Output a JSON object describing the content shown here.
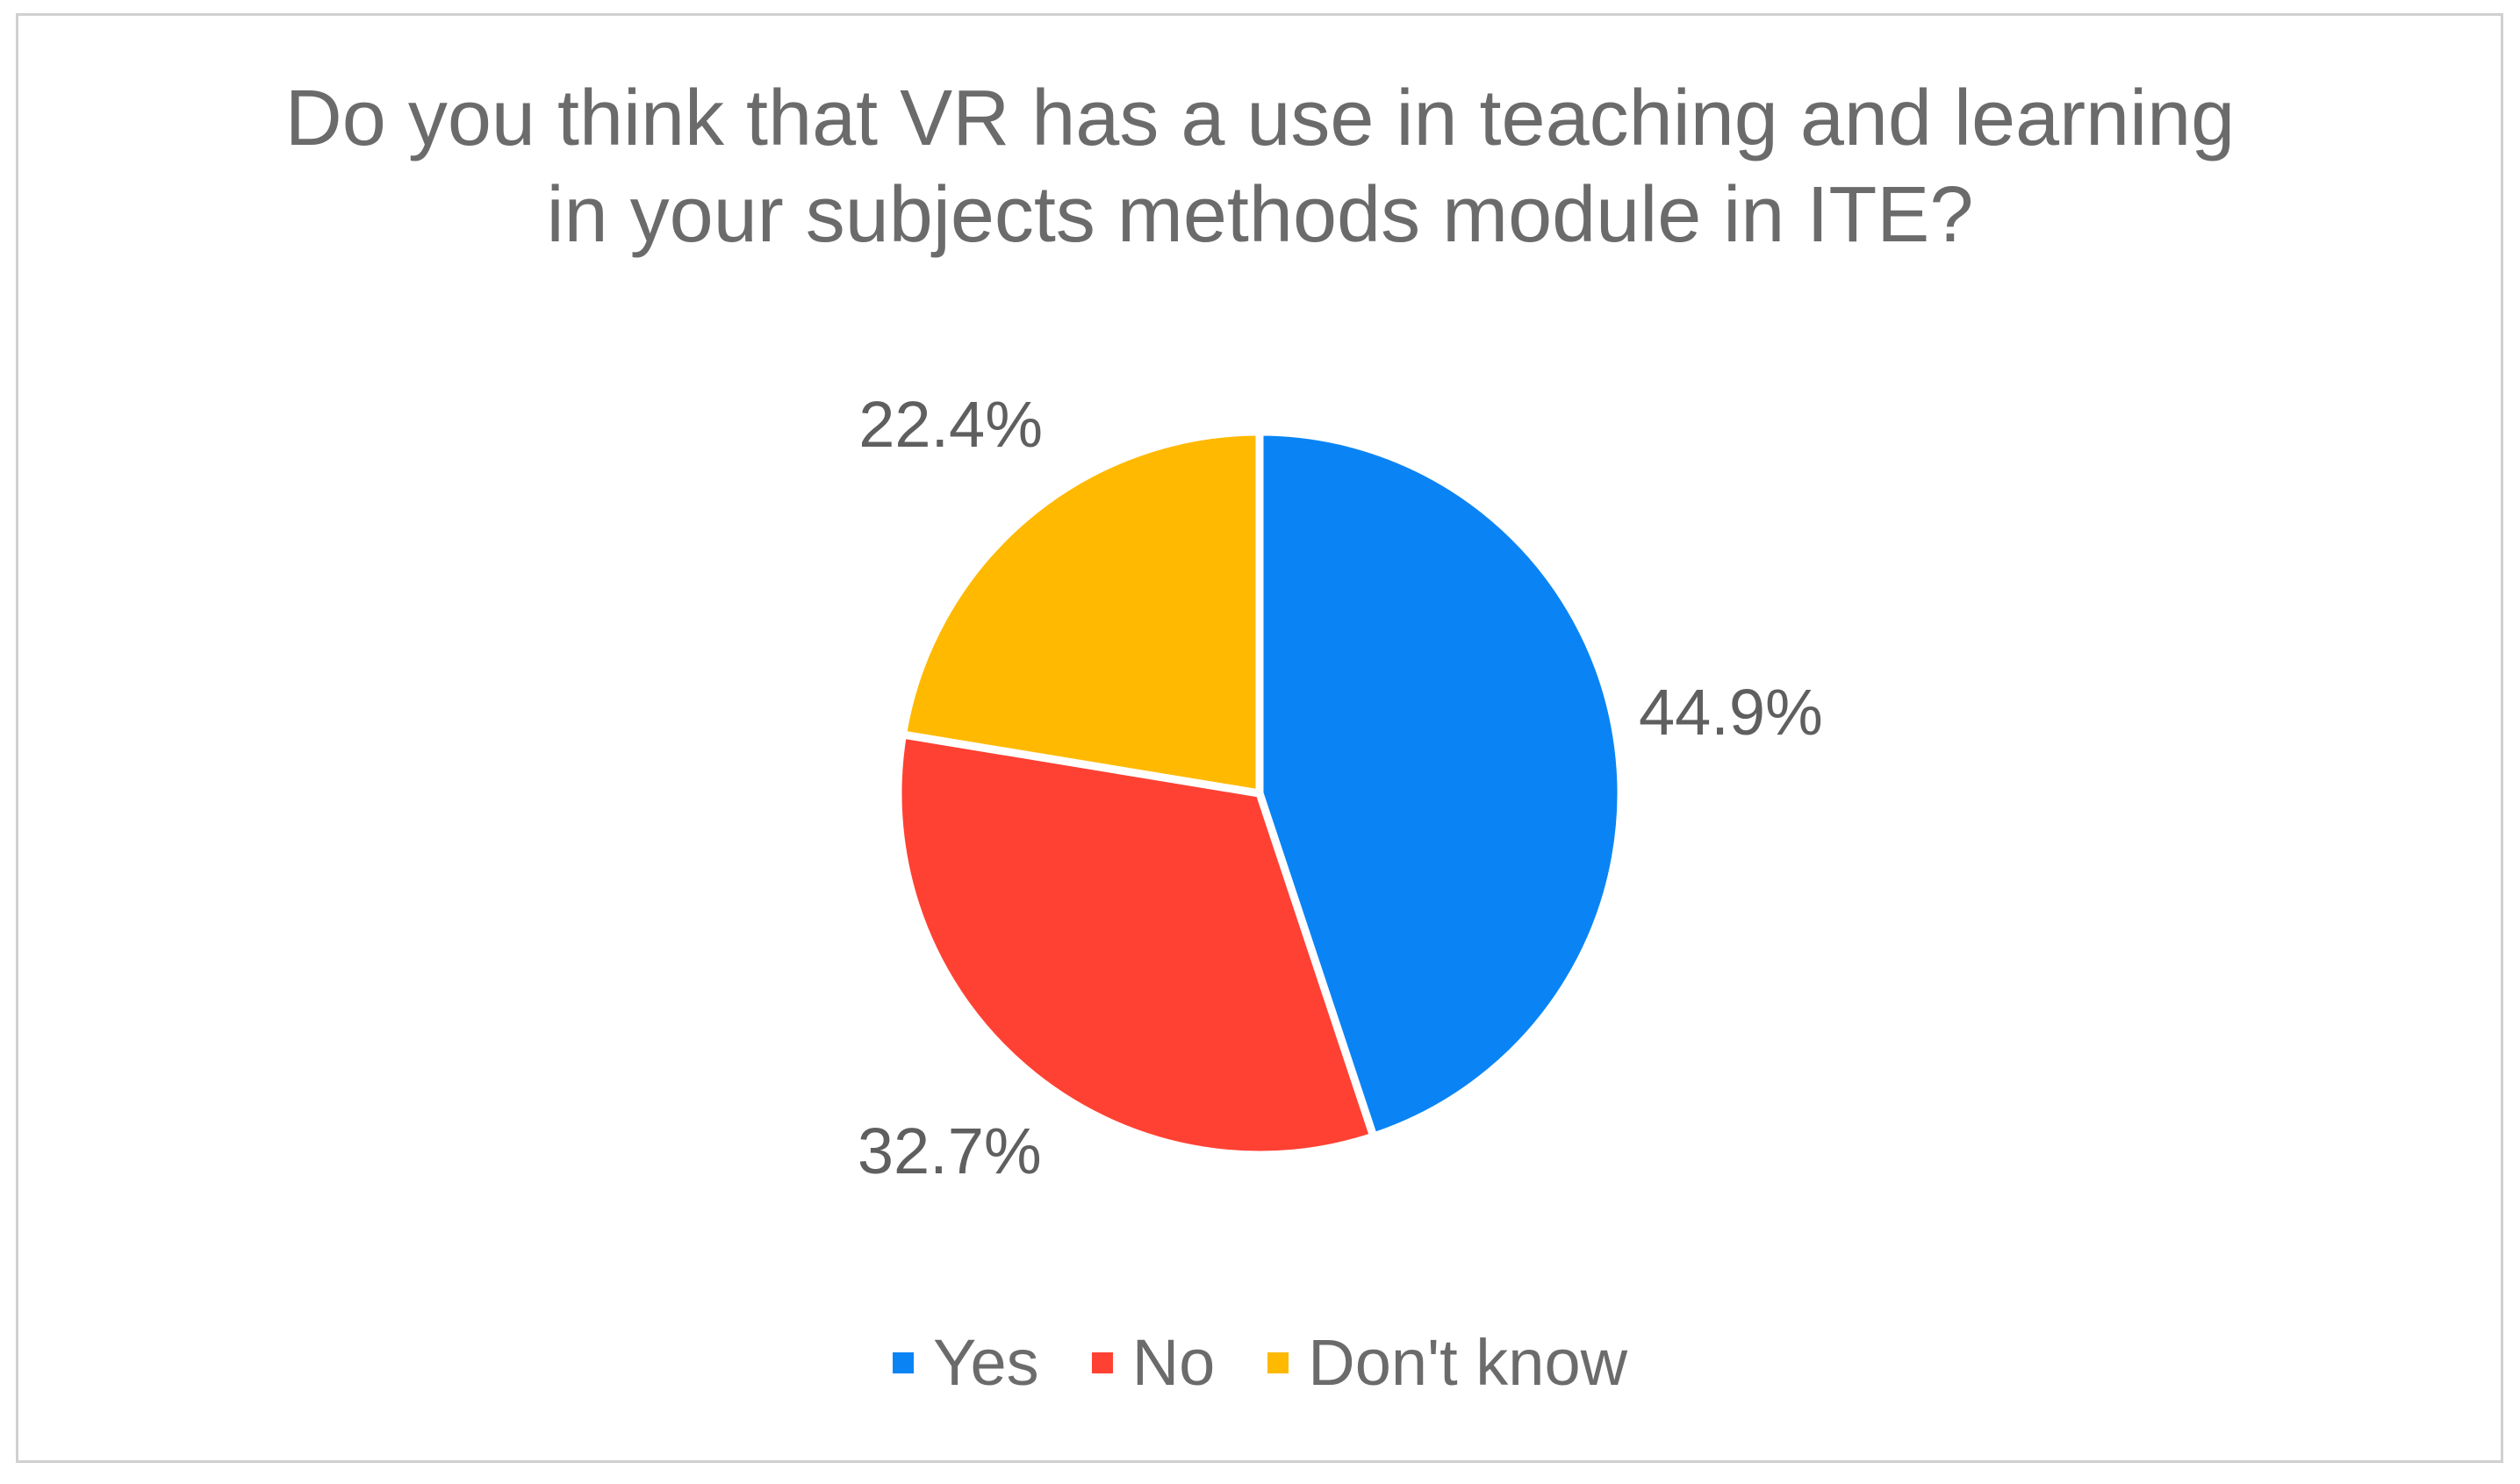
{
  "chart_data": {
    "type": "pie",
    "title": "Do you think that VR has a use in teaching and learning in your subjects methods module in ITE?",
    "categories": [
      "Yes",
      "No",
      "Don't know"
    ],
    "values": [
      44.9,
      32.7,
      22.4
    ],
    "value_labels": [
      "44.9%",
      "32.7%",
      "22.4%"
    ],
    "colors": [
      "#0a84f5",
      "#ff4133",
      "#ffb900"
    ],
    "legend": "bottom"
  }
}
